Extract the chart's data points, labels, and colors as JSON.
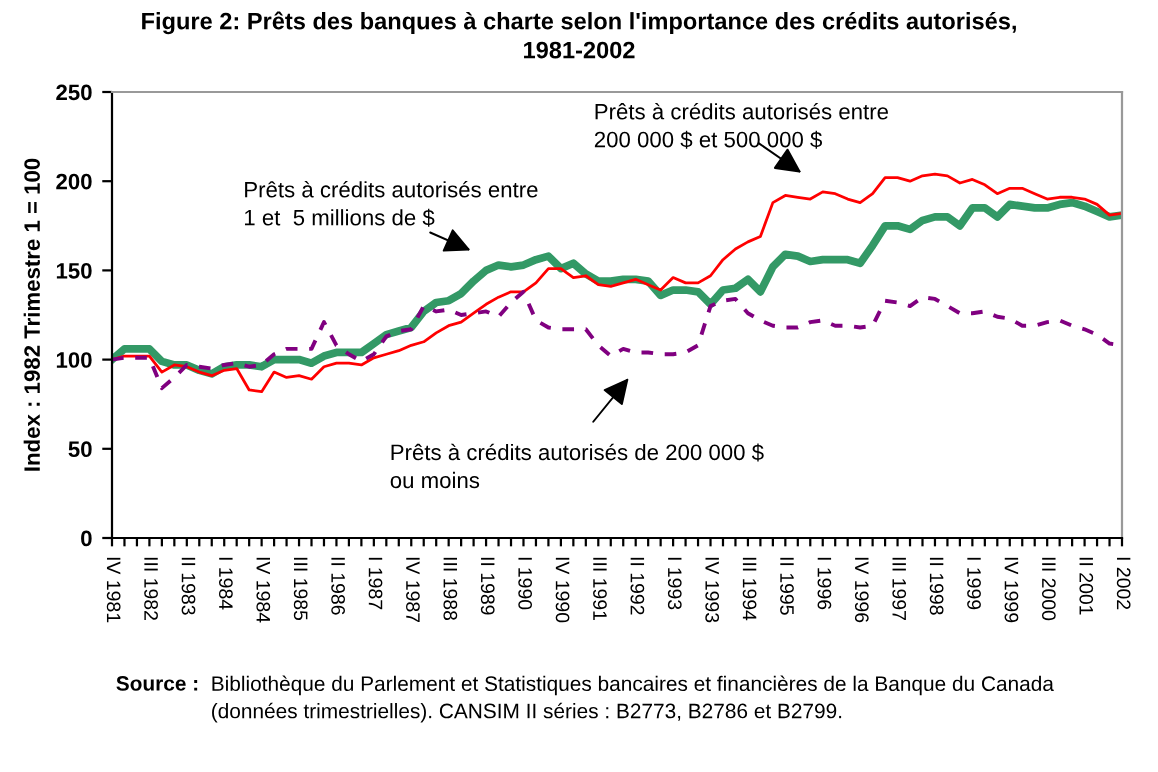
{
  "chart_data": {
    "type": "line",
    "title": "Figure 2: Prêts des banques à charte selon l'importance des crédits autorisés,\n1981-2002",
    "ylabel": "Index : 1982 Trimestre 1 = 100",
    "categories": [
      "IV 1981",
      null,
      null,
      "III 1982",
      null,
      null,
      "II 1983",
      null,
      null,
      "I 1984",
      null,
      null,
      "IV 1984",
      null,
      null,
      "III 1985",
      null,
      null,
      "II 1986",
      null,
      null,
      "I 1987",
      null,
      null,
      "IV 1987",
      null,
      null,
      "III 1988",
      null,
      null,
      "II 1989",
      null,
      null,
      "I 1990",
      null,
      null,
      "IV 1990",
      null,
      null,
      "III 1991",
      null,
      null,
      "II 1992",
      null,
      null,
      "I 1993",
      null,
      null,
      "IV 1993",
      null,
      null,
      "III 1994",
      null,
      null,
      "II 1995",
      null,
      null,
      "I 1996",
      null,
      null,
      "IV 1996",
      null,
      null,
      "III 1997",
      null,
      null,
      "II 1998",
      null,
      null,
      "I 1999",
      null,
      null,
      "IV 1999",
      null,
      null,
      "III 2000",
      null,
      null,
      "II 2001",
      null,
      null,
      "I 2002"
    ],
    "series": [
      {
        "name": "Prêts à crédits autorisés entre\n1 et  5 millions de $",
        "color": "#339966",
        "line_style": "solid",
        "values": [
          100,
          106,
          106,
          106,
          99,
          97,
          97,
          94,
          92,
          96,
          97,
          97,
          96,
          100,
          100,
          100,
          98,
          102,
          104,
          104,
          104,
          109,
          114,
          116,
          118,
          127,
          132,
          133,
          137,
          144,
          150,
          153,
          152,
          153,
          156,
          158,
          151,
          154,
          148,
          144,
          144,
          145,
          145,
          144,
          136,
          139,
          139,
          138,
          131,
          139,
          140,
          145,
          138,
          152,
          159,
          158,
          155,
          156,
          156,
          156,
          154,
          164,
          175,
          175,
          173,
          178,
          180,
          180,
          175,
          185,
          185,
          180,
          187,
          186,
          185,
          185,
          187,
          188,
          186,
          183,
          180,
          181
        ]
      },
      {
        "name": "Prêts à crédits autorisés entre\n200 000 $ et 500 000 $",
        "color": "#ff0000",
        "line_style": "solid",
        "values": [
          100,
          102,
          102,
          102,
          93,
          97,
          96,
          93,
          91,
          94,
          95,
          83,
          82,
          93,
          90,
          91,
          89,
          96,
          98,
          98,
          97,
          101,
          103,
          105,
          108,
          110,
          115,
          119,
          121,
          126,
          131,
          135,
          138,
          138,
          143,
          151,
          151,
          146,
          147,
          142,
          141,
          143,
          145,
          142,
          139,
          146,
          143,
          143,
          147,
          156,
          162,
          166,
          169,
          188,
          192,
          191,
          190,
          194,
          193,
          190,
          188,
          193,
          202,
          202,
          200,
          203,
          204,
          203,
          199,
          201,
          198,
          193,
          196,
          196,
          193,
          190,
          191,
          191,
          190,
          187,
          181,
          182
        ]
      },
      {
        "name": "Prêts à crédits autorisés de 200 000 $\nou moins",
        "color": "#800080",
        "line_style": "dashed",
        "values": [
          100,
          101,
          101,
          101,
          84,
          90,
          97,
          96,
          95,
          97,
          98,
          96,
          97,
          103,
          106,
          106,
          106,
          121,
          108,
          103,
          99,
          103,
          113,
          116,
          117,
          130,
          127,
          128,
          125,
          126,
          127,
          124,
          132,
          138,
          122,
          118,
          117,
          117,
          117,
          108,
          102,
          106,
          104,
          104,
          103,
          103,
          104,
          108,
          130,
          133,
          134,
          126,
          122,
          119,
          118,
          118,
          121,
          122,
          119,
          119,
          118,
          119,
          133,
          132,
          130,
          135,
          134,
          130,
          126,
          126,
          127,
          124,
          123,
          119,
          119,
          121,
          122,
          119,
          117,
          114,
          109,
          108
        ]
      }
    ],
    "ylim": [
      0,
      250
    ],
    "yticks": [
      0,
      50,
      100,
      150,
      200,
      250
    ],
    "grid": false,
    "legend": false,
    "marker": "none",
    "annotations": [
      "Source :",
      "Bibliothèque du Parlement et Statistiques bancaires et financières de la Banque du Canada\n(données trimestrielles). CANSIM II séries : B2773, B2786 et B2799."
    ]
  }
}
